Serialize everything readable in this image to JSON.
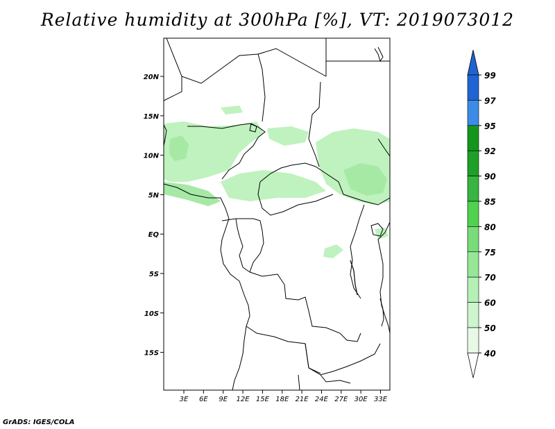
{
  "title": "Relative humidity at 300hPa [%], VT: 2019073012",
  "credit": "GrADS: IGES/COLA",
  "map": {
    "lon_labels": [
      "3E",
      "6E",
      "9E",
      "12E",
      "15E",
      "18E",
      "21E",
      "24E",
      "27E",
      "30E",
      "33E"
    ],
    "lat_labels": [
      "20N",
      "15N",
      "10N",
      "5N",
      "EQ",
      "5S",
      "10S",
      "15S"
    ]
  },
  "colorbar": {
    "labels": [
      "99",
      "97",
      "95",
      "92",
      "90",
      "85",
      "80",
      "75",
      "70",
      "60",
      "50",
      "40"
    ],
    "colors": {
      "c97_99": "#1f64d2",
      "c95_97": "#3c8ce6",
      "c92_95": "#14961e",
      "c90_92": "#1ea028",
      "c85_90": "#37b441",
      "c80_85": "#50d250",
      "c75_80": "#78dc78",
      "c70_75": "#96e696",
      "c60_70": "#b4f0b4",
      "c50_60": "#cdf5cd",
      "c40_50": "#e6fae6",
      "below_40": "#ffffff"
    }
  },
  "humidity_field_color": "#b4f0b4"
}
